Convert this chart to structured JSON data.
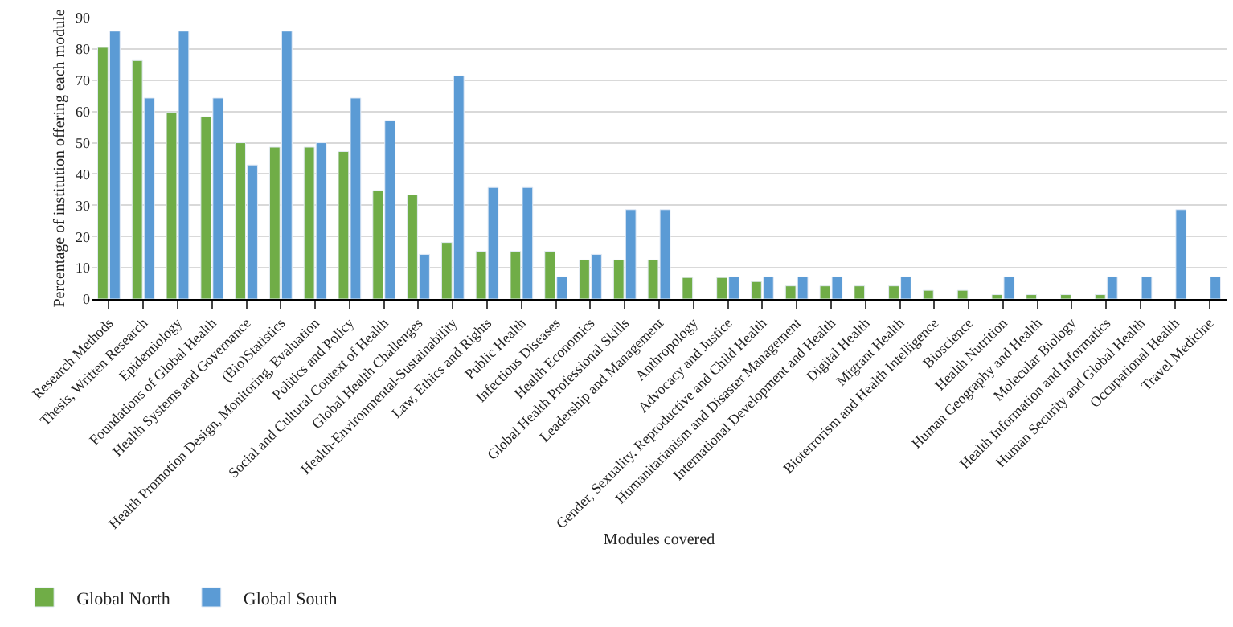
{
  "chart_data": {
    "type": "bar",
    "xlabel": "Modules covered",
    "ylabel": "Percentage of institution offering each module",
    "categories": [
      "Research Methods",
      "Thesis, Written Research",
      "Epidemiology",
      "Foundations of Global Health",
      "Health Systems and Governance",
      "(Bio)Statistics",
      "Health Promotion Design, Monitoring, Evaluation",
      "Politics and Policy",
      "Social and Cultural Context of Health",
      "Global Health Challenges",
      "Health-Environmental-Sustainability",
      "Law, Ethics and Rights",
      "Public Health",
      "Infectious Diseases",
      "Health Economics",
      "Global Health Professional Skills",
      "Leadership and Management",
      "Anthropology",
      "Advocacy and Justice",
      "Gender, Sexuality, Reproductive and Child Health",
      "Humanitarianism and Disaster Management",
      "International Development and Health",
      "Digital Health",
      "Migrant Health",
      "Bioterrorism and Health Intelligence",
      "Bioscience",
      "Health Nutrition",
      "Human Geography and Health",
      "Molecular Biology",
      "Health Information and Informatics",
      "Human Security and Global Health",
      "Occupational Health",
      "Travel Medicine"
    ],
    "series": [
      {
        "name": "Global North",
        "color": "#70ad47",
        "values": [
          80.5,
          76.3,
          59.7,
          58.3,
          50,
          48.6,
          48.6,
          47.2,
          34.7,
          33.3,
          18.1,
          15.3,
          15.3,
          15.3,
          12.5,
          12.5,
          12.5,
          6.9,
          6.9,
          5.6,
          4.2,
          4.2,
          4.2,
          4.2,
          2.8,
          2.8,
          1.4,
          1.4,
          1.4,
          1.4,
          null,
          null,
          null
        ]
      },
      {
        "name": "Global South",
        "color": "#5b9bd5",
        "values": [
          85.7,
          64.3,
          85.7,
          64.3,
          42.9,
          85.7,
          50,
          64.3,
          57.1,
          14.3,
          71.4,
          35.7,
          35.7,
          7.1,
          14.3,
          28.6,
          28.6,
          null,
          7.1,
          7.1,
          7.1,
          7.1,
          null,
          7.1,
          null,
          null,
          7.1,
          null,
          null,
          7.1,
          7.1,
          28.6,
          7.1
        ]
      }
    ],
    "ylim": [
      0,
      90
    ],
    "yticks": [
      0,
      10,
      20,
      30,
      40,
      50,
      60,
      70,
      80,
      90
    ],
    "grid": "y",
    "legend": "bottom left"
  }
}
